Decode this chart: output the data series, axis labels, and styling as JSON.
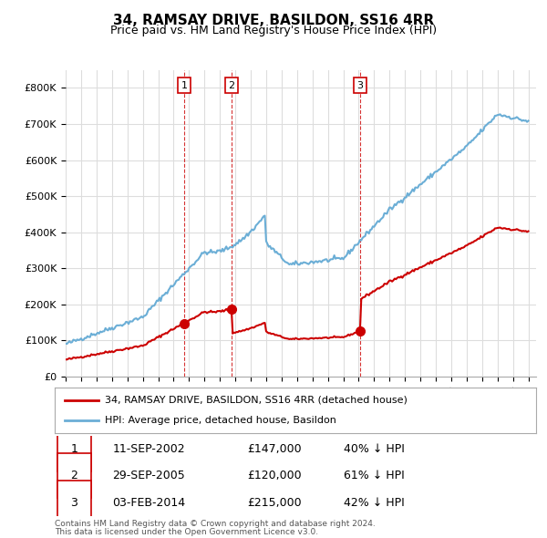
{
  "title": "34, RAMSAY DRIVE, BASILDON, SS16 4RR",
  "subtitle": "Price paid vs. HM Land Registry's House Price Index (HPI)",
  "legend_line1": "34, RAMSAY DRIVE, BASILDON, SS16 4RR (detached house)",
  "legend_line2": "HPI: Average price, detached house, Basildon",
  "footer1": "Contains HM Land Registry data © Crown copyright and database right 2024.",
  "footer2": "This data is licensed under the Open Government Licence v3.0.",
  "sales": [
    {
      "num": 1,
      "date": "11-SEP-2002",
      "price": "£147,000",
      "pct": "40% ↓ HPI",
      "year": 2002.7
    },
    {
      "num": 2,
      "date": "29-SEP-2005",
      "price": "£120,000",
      "pct": "61% ↓ HPI",
      "year": 2005.75
    },
    {
      "num": 3,
      "date": "03-FEB-2014",
      "price": "£215,000",
      "pct": "42% ↓ HPI",
      "year": 2014.1
    }
  ],
  "hpi_color": "#6baed6",
  "price_color": "#cc0000",
  "sale_marker_color": "#cc0000",
  "vline_color": "#cc0000",
  "background_color": "#ffffff",
  "grid_color": "#dddddd",
  "ylim": [
    0,
    850000
  ],
  "xlim": [
    1995,
    2025.5
  ],
  "yticks": [
    0,
    100000,
    200000,
    300000,
    400000,
    500000,
    600000,
    700000,
    800000
  ]
}
